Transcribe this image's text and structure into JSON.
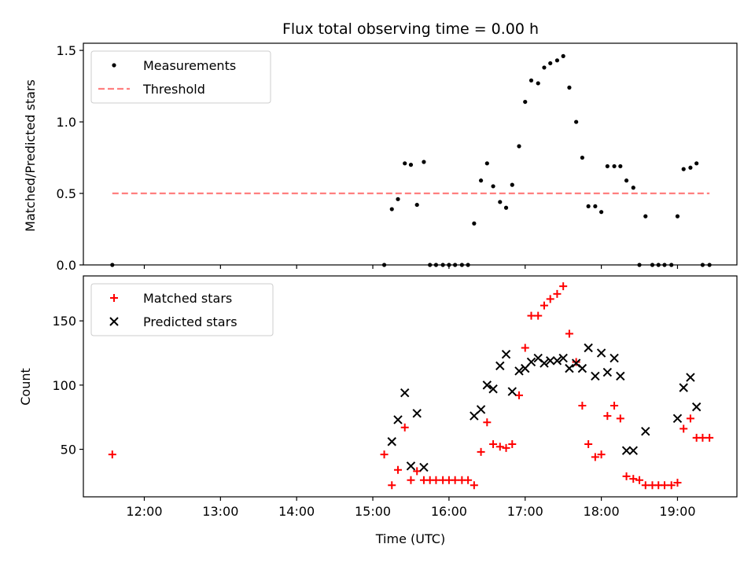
{
  "chart_data": [
    {
      "type": "scatter",
      "title": "Flux total observing time = 0.00 h",
      "xlabel": "",
      "ylabel": "Matched/Predicted stars",
      "x_unit": "hours UTC",
      "xlim": [
        11.2,
        19.78
      ],
      "ylim": [
        0,
        1.55
      ],
      "xticks": [
        12,
        13,
        14,
        15,
        16,
        17,
        18,
        19
      ],
      "yticks": [
        0.0,
        0.5,
        1.0,
        1.5
      ],
      "ytick_labels": [
        "0.0",
        "0.5",
        "1.0",
        "1.5"
      ],
      "legend_position": "top-left",
      "grid": false,
      "series": [
        {
          "name": "Measurements",
          "marker": "dot",
          "color": "#000000",
          "points": [
            [
              11.58,
              0.0
            ],
            [
              15.15,
              0.0
            ],
            [
              15.25,
              0.39
            ],
            [
              15.33,
              0.46
            ],
            [
              15.42,
              0.71
            ],
            [
              15.5,
              0.7
            ],
            [
              15.58,
              0.42
            ],
            [
              15.67,
              0.72
            ],
            [
              15.75,
              0.0
            ],
            [
              15.83,
              0.0
            ],
            [
              15.92,
              0.0
            ],
            [
              16.0,
              0.0
            ],
            [
              16.08,
              0.0
            ],
            [
              16.17,
              0.0
            ],
            [
              16.25,
              0.0
            ],
            [
              16.33,
              0.29
            ],
            [
              16.42,
              0.59
            ],
            [
              16.5,
              0.71
            ],
            [
              16.58,
              0.55
            ],
            [
              16.67,
              0.44
            ],
            [
              16.75,
              0.4
            ],
            [
              16.83,
              0.56
            ],
            [
              16.92,
              0.83
            ],
            [
              17.0,
              1.14
            ],
            [
              17.08,
              1.29
            ],
            [
              17.17,
              1.27
            ],
            [
              17.25,
              1.38
            ],
            [
              17.33,
              1.41
            ],
            [
              17.42,
              1.43
            ],
            [
              17.5,
              1.46
            ],
            [
              17.58,
              1.24
            ],
            [
              17.67,
              1.0
            ],
            [
              17.75,
              0.75
            ],
            [
              17.83,
              0.41
            ],
            [
              17.92,
              0.41
            ],
            [
              18.0,
              0.37
            ],
            [
              18.08,
              0.69
            ],
            [
              18.17,
              0.69
            ],
            [
              18.25,
              0.69
            ],
            [
              18.33,
              0.59
            ],
            [
              18.42,
              0.54
            ],
            [
              18.5,
              0.0
            ],
            [
              18.58,
              0.34
            ],
            [
              18.67,
              0.0
            ],
            [
              18.75,
              0.0
            ],
            [
              18.83,
              0.0
            ],
            [
              18.92,
              0.0
            ],
            [
              19.0,
              0.34
            ],
            [
              19.08,
              0.67
            ],
            [
              19.17,
              0.68
            ],
            [
              19.25,
              0.71
            ],
            [
              19.33,
              0.0
            ],
            [
              19.42,
              0.0
            ]
          ]
        },
        {
          "name": "Threshold",
          "type": "line",
          "style": "dashed",
          "color": "#ff7f7f",
          "x": [
            11.58,
            19.42
          ],
          "y": [
            0.5,
            0.5
          ]
        }
      ]
    },
    {
      "type": "scatter",
      "title": "",
      "xlabel": "Time (UTC)",
      "ylabel": "Count",
      "x_unit": "hours UTC",
      "xlim": [
        11.2,
        19.78
      ],
      "ylim": [
        13,
        185
      ],
      "xticks": [
        12,
        13,
        14,
        15,
        16,
        17,
        18,
        19
      ],
      "xtick_labels": [
        "12:00",
        "13:00",
        "14:00",
        "15:00",
        "16:00",
        "17:00",
        "18:00",
        "19:00"
      ],
      "yticks": [
        50,
        100,
        150
      ],
      "ytick_labels": [
        "50",
        "100",
        "150"
      ],
      "legend_position": "top-left",
      "grid": false,
      "series": [
        {
          "name": "Matched stars",
          "marker": "plus",
          "color": "#ff0000",
          "points": [
            [
              11.58,
              46
            ],
            [
              15.15,
              46
            ],
            [
              15.25,
              22
            ],
            [
              15.33,
              34
            ],
            [
              15.42,
              67
            ],
            [
              15.5,
              26
            ],
            [
              15.58,
              33
            ],
            [
              15.67,
              26
            ],
            [
              15.75,
              26
            ],
            [
              15.83,
              26
            ],
            [
              15.92,
              26
            ],
            [
              16.0,
              26
            ],
            [
              16.08,
              26
            ],
            [
              16.17,
              26
            ],
            [
              16.25,
              26
            ],
            [
              16.33,
              22
            ],
            [
              16.42,
              48
            ],
            [
              16.5,
              71
            ],
            [
              16.58,
              54
            ],
            [
              16.67,
              52
            ],
            [
              16.75,
              51
            ],
            [
              16.83,
              54
            ],
            [
              16.92,
              92
            ],
            [
              17.0,
              129
            ],
            [
              17.08,
              154
            ],
            [
              17.17,
              154
            ],
            [
              17.25,
              162
            ],
            [
              17.33,
              167
            ],
            [
              17.42,
              171
            ],
            [
              17.5,
              177
            ],
            [
              17.58,
              140
            ],
            [
              17.67,
              118
            ],
            [
              17.75,
              84
            ],
            [
              17.83,
              54
            ],
            [
              17.92,
              44
            ],
            [
              18.0,
              46
            ],
            [
              18.08,
              76
            ],
            [
              18.17,
              84
            ],
            [
              18.25,
              74
            ],
            [
              18.33,
              29
            ],
            [
              18.42,
              27
            ],
            [
              18.5,
              26
            ],
            [
              18.58,
              22
            ],
            [
              18.67,
              22
            ],
            [
              18.75,
              22
            ],
            [
              18.83,
              22
            ],
            [
              18.92,
              22
            ],
            [
              19.0,
              24
            ],
            [
              19.08,
              66
            ],
            [
              19.17,
              74
            ],
            [
              19.25,
              59
            ],
            [
              19.33,
              59
            ],
            [
              19.42,
              59
            ]
          ]
        },
        {
          "name": "Predicted stars",
          "marker": "x",
          "color": "#000000",
          "points": [
            [
              15.25,
              56
            ],
            [
              15.33,
              73
            ],
            [
              15.42,
              94
            ],
            [
              15.5,
              37
            ],
            [
              15.58,
              78
            ],
            [
              15.67,
              36
            ],
            [
              16.33,
              76
            ],
            [
              16.42,
              81
            ],
            [
              16.5,
              100
            ],
            [
              16.58,
              97
            ],
            [
              16.67,
              115
            ],
            [
              16.75,
              124
            ],
            [
              16.83,
              95
            ],
            [
              16.92,
              111
            ],
            [
              17.0,
              113
            ],
            [
              17.08,
              118
            ],
            [
              17.17,
              121
            ],
            [
              17.25,
              117
            ],
            [
              17.33,
              119
            ],
            [
              17.42,
              119
            ],
            [
              17.5,
              121
            ],
            [
              17.58,
              113
            ],
            [
              17.67,
              117
            ],
            [
              17.75,
              113
            ],
            [
              17.83,
              129
            ],
            [
              17.92,
              107
            ],
            [
              18.0,
              125
            ],
            [
              18.08,
              110
            ],
            [
              18.17,
              121
            ],
            [
              18.25,
              107
            ],
            [
              18.33,
              49
            ],
            [
              18.42,
              49
            ],
            [
              18.58,
              64
            ],
            [
              19.0,
              74
            ],
            [
              19.08,
              98
            ],
            [
              19.17,
              106
            ],
            [
              19.25,
              83
            ]
          ]
        }
      ]
    }
  ]
}
